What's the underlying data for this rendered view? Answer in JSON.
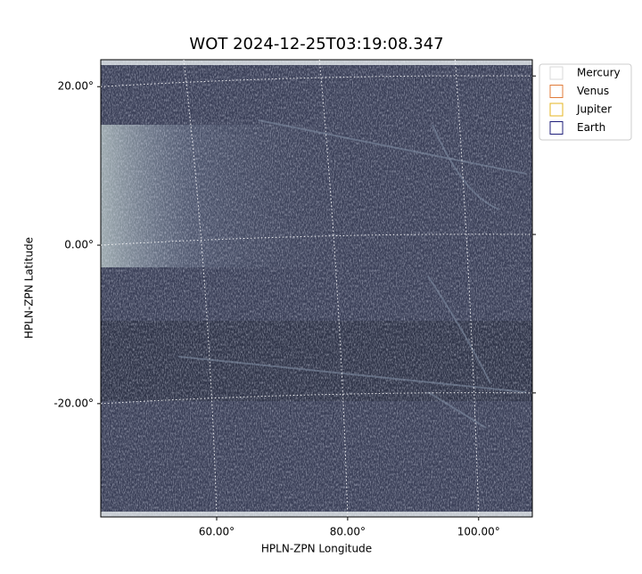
{
  "chart_data": {
    "type": "image",
    "title": "WOT 2024-12-25T03:19:08.347",
    "xlabel": "HPLN-ZPN Longitude",
    "ylabel": "HPLN-ZPN Latitude",
    "xlim": [
      42.3,
      108.2
    ],
    "ylim": [
      -34.3,
      23.4
    ],
    "xticks": [
      {
        "value": 60,
        "label": "60.00°"
      },
      {
        "value": 80,
        "label": "80.00°"
      },
      {
        "value": 100,
        "label": "100.00°"
      }
    ],
    "yticks": [
      {
        "value": 20,
        "label": "20.00°"
      },
      {
        "value": 0,
        "label": "0.00°"
      },
      {
        "value": -20,
        "label": "-20.00°"
      }
    ],
    "grid": true,
    "legend_position": "upper right",
    "legend": [
      {
        "name": "Mercury",
        "color": "#d9d9d9"
      },
      {
        "name": "Venus",
        "color": "#e07b39"
      },
      {
        "name": "Jupiter",
        "color": "#e6b422"
      },
      {
        "name": "Earth",
        "color": "#1f1f7a"
      }
    ]
  }
}
